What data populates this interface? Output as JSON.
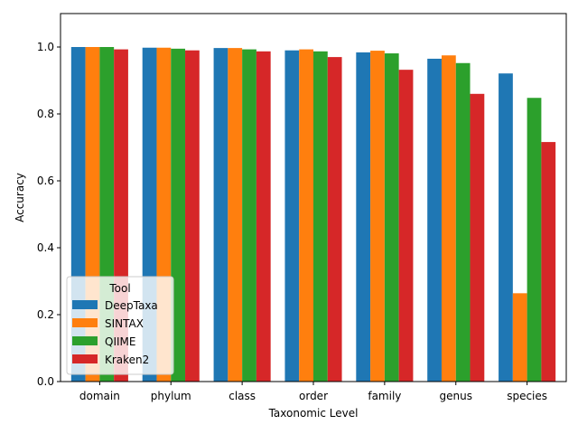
{
  "chart_data": {
    "type": "bar",
    "xlabel": "Taxonomic Level",
    "ylabel": "Accuracy",
    "ylim": [
      0,
      1.1
    ],
    "yticks": [
      "0.0",
      "0.2",
      "0.4",
      "0.6",
      "0.8",
      "1.0"
    ],
    "categories": [
      "domain",
      "phylum",
      "class",
      "order",
      "family",
      "genus",
      "species"
    ],
    "legend": {
      "title": "Tool",
      "placement": "lower-left"
    },
    "grid": false,
    "series": [
      {
        "name": "DeepTaxa",
        "color": "#1f77b4",
        "values": [
          1.0,
          0.998,
          0.997,
          0.99,
          0.984,
          0.965,
          0.921
        ]
      },
      {
        "name": "SINTAX",
        "color": "#ff7f0e",
        "values": [
          1.0,
          0.998,
          0.997,
          0.993,
          0.989,
          0.975,
          0.264
        ]
      },
      {
        "name": "QIIME",
        "color": "#2ca02c",
        "values": [
          1.0,
          0.995,
          0.993,
          0.987,
          0.981,
          0.952,
          0.848
        ]
      },
      {
        "name": "Kraken2",
        "color": "#d62728",
        "values": [
          0.993,
          0.99,
          0.987,
          0.97,
          0.932,
          0.86,
          0.716
        ]
      }
    ]
  }
}
